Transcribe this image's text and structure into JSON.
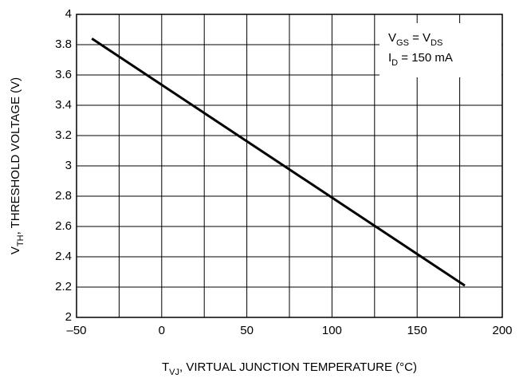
{
  "chart_data": {
    "type": "line",
    "x_label": [
      {
        "text": "T"
      },
      {
        "text": "VJ",
        "sub": true
      },
      {
        "text": ", VIRTUAL JUNCTION TEMPERATURE (°C)"
      }
    ],
    "y_label": [
      {
        "text": "V"
      },
      {
        "text": "TH",
        "sub": true
      },
      {
        "text": ", THRESHOLD VOLTAGE (V)"
      }
    ],
    "annotation": [
      [
        {
          "text": "V"
        },
        {
          "text": "GS",
          "sub": true
        },
        {
          "text": " = V"
        },
        {
          "text": "DS",
          "sub": true
        }
      ],
      [
        {
          "text": "I"
        },
        {
          "text": "D",
          "sub": true
        },
        {
          "text": " = 150 mA"
        }
      ]
    ],
    "x": [
      -41,
      178
    ],
    "series": [
      {
        "color": "#000000",
        "values": [
          3.84,
          2.21
        ]
      }
    ],
    "xlim": [
      -50,
      200
    ],
    "xticks": [
      {
        "value": -50,
        "label": "–50"
      },
      0,
      50,
      100,
      150,
      200
    ],
    "xminor": [
      -25,
      25,
      75,
      125,
      175
    ],
    "ylim": [
      2,
      4
    ],
    "yticks": [
      2,
      2.2,
      2.4,
      2.6,
      2.8,
      3,
      3.2,
      3.4,
      3.6,
      3.8,
      4
    ],
    "grid": true
  }
}
